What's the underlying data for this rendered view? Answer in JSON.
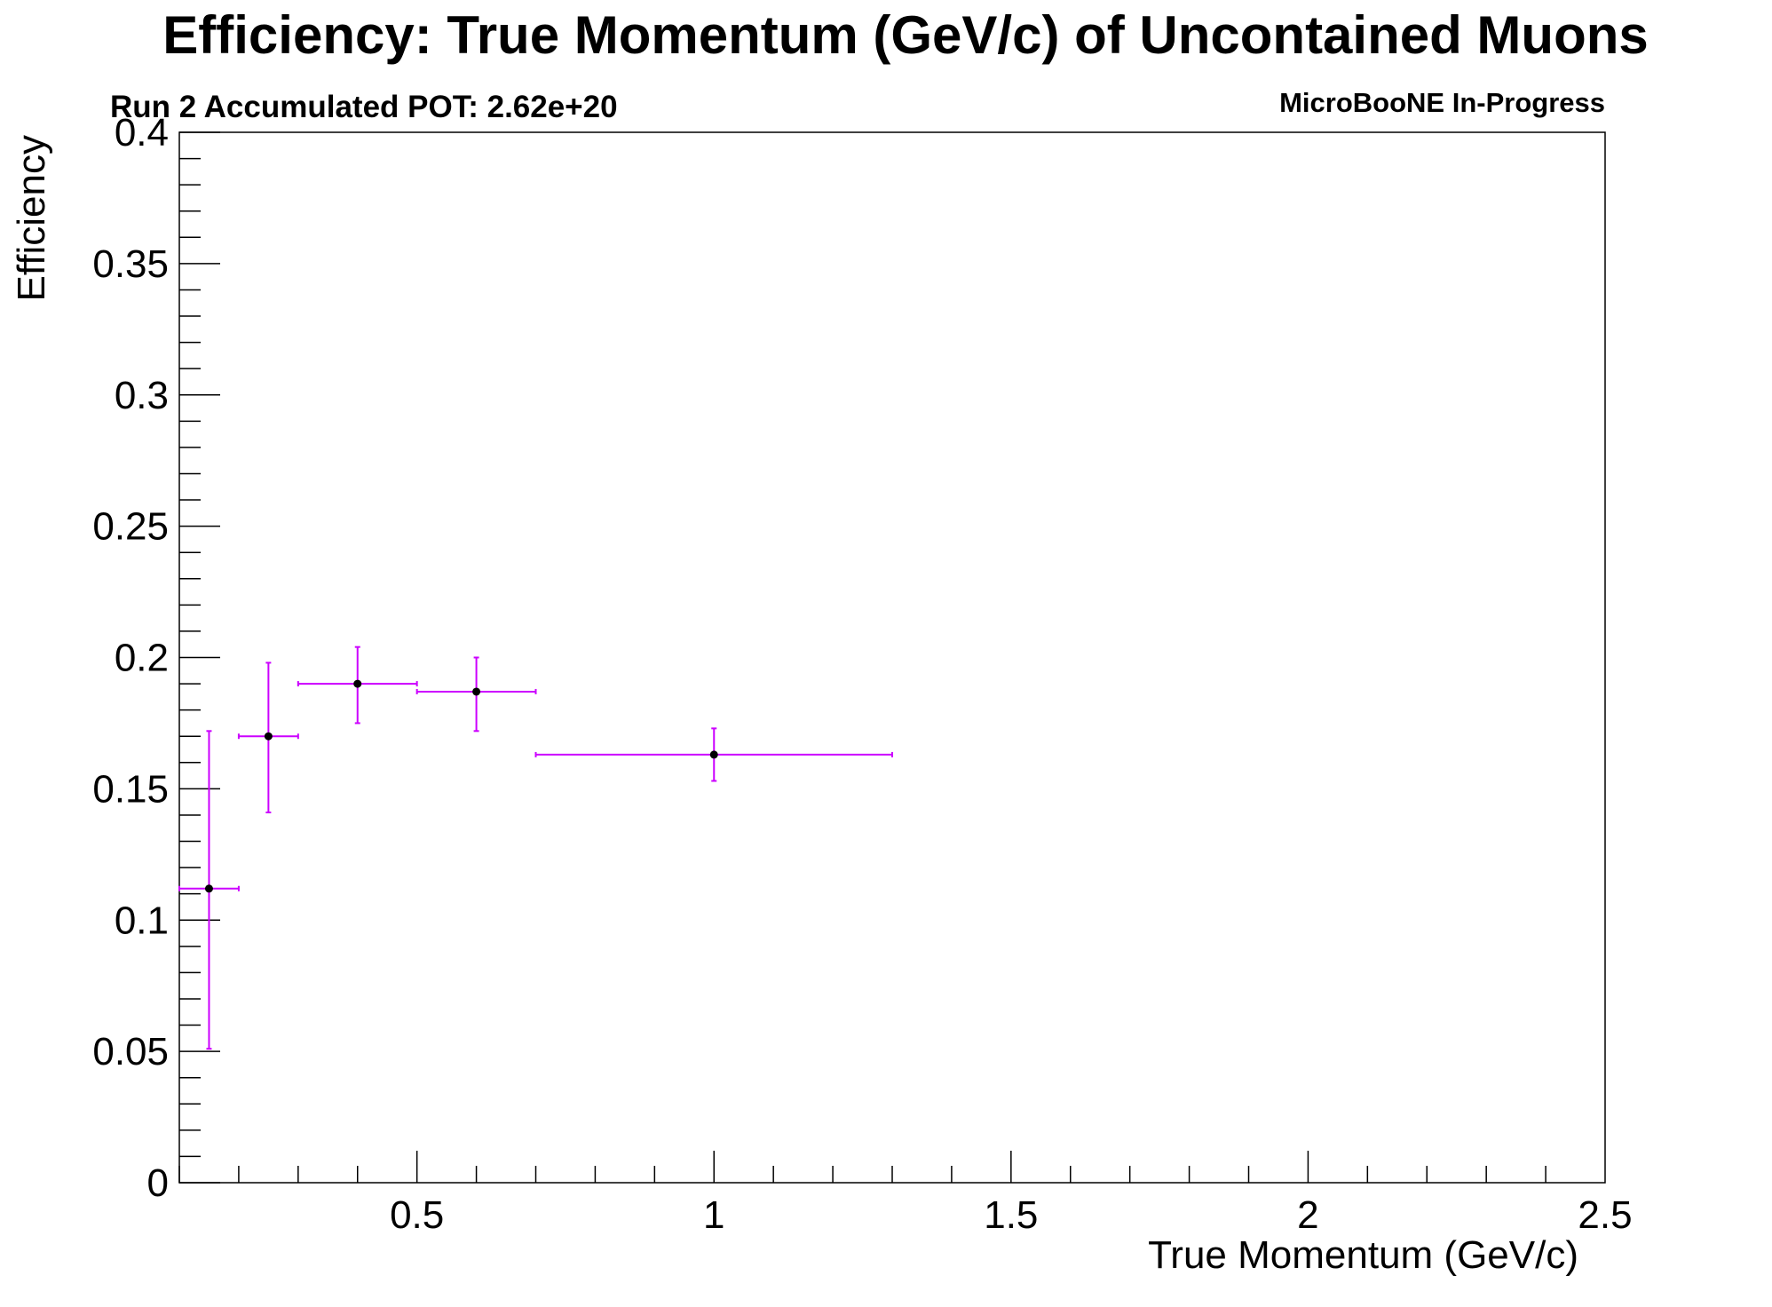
{
  "chart_data": {
    "type": "scatter",
    "title": "Efficiency: True Momentum (GeV/c) of Uncontained Muons",
    "subtitle_left": "Run 2 Accumulated POT: 2.62e+20",
    "subtitle_right": "MicroBooNE In-Progress",
    "xlabel": "True Momentum (GeV/c)",
    "ylabel": "Efficiency",
    "xlim": [
      0.1,
      2.5
    ],
    "ylim": [
      0,
      0.4
    ],
    "xticks": [
      0.5,
      1,
      1.5,
      2,
      2.5
    ],
    "xtick_labels": [
      "0.5",
      "1",
      "1.5",
      "2",
      "2.5"
    ],
    "yticks": [
      0,
      0.05,
      0.1,
      0.15,
      0.2,
      0.25,
      0.3,
      0.35,
      0.4
    ],
    "ytick_labels": [
      "0",
      "0.05",
      "0.1",
      "0.15",
      "0.2",
      "0.25",
      "0.3",
      "0.35",
      "0.4"
    ],
    "grid": false,
    "marker_color": "#000000",
    "error_bar_color": "#cc00ff",
    "series": [
      {
        "points": [
          {
            "x": 0.15,
            "xlow": 0.1,
            "xhigh": 0.2,
            "y": 0.112,
            "ylow": 0.051,
            "yhigh": 0.172
          },
          {
            "x": 0.25,
            "xlow": 0.2,
            "xhigh": 0.3,
            "y": 0.17,
            "ylow": 0.141,
            "yhigh": 0.198
          },
          {
            "x": 0.4,
            "xlow": 0.3,
            "xhigh": 0.5,
            "y": 0.19,
            "ylow": 0.175,
            "yhigh": 0.204
          },
          {
            "x": 0.6,
            "xlow": 0.5,
            "xhigh": 0.7,
            "y": 0.187,
            "ylow": 0.172,
            "yhigh": 0.2
          },
          {
            "x": 1.0,
            "xlow": 0.7,
            "xhigh": 1.3,
            "y": 0.163,
            "ylow": 0.153,
            "yhigh": 0.173
          }
        ]
      }
    ]
  }
}
